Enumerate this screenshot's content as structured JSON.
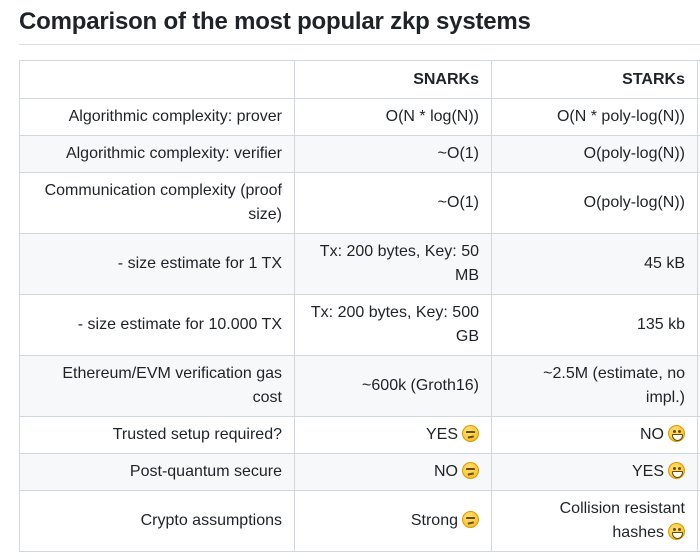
{
  "heading": "Comparison of the most popular zkp systems",
  "table": {
    "headers": [
      "",
      "SNARKs",
      "STARKs"
    ],
    "rows": [
      {
        "label": "Algorithmic complexity: prover",
        "snarks": "O(N * log(N))",
        "starks": "O(N * poly-log(N))"
      },
      {
        "label": "Algorithmic complexity: verifier",
        "snarks": "~O(1)",
        "starks": "O(poly-log(N))"
      },
      {
        "label": "Communication complexity (proof size)",
        "snarks": "~O(1)",
        "starks": "O(poly-log(N))"
      },
      {
        "label": "- size estimate for 1 TX",
        "snarks": "Tx: 200 bytes, Key: 50 MB",
        "starks": "45 kB"
      },
      {
        "label": "- size estimate for 10.000 TX",
        "snarks": "Tx: 200 bytes, Key: 500 GB",
        "starks": "135 kb"
      },
      {
        "label": "Ethereum/EVM verification gas cost",
        "snarks": "~600k (Groth16)",
        "starks": "~2.5M (estimate, no impl.)"
      },
      {
        "label": "Trusted setup required?",
        "snarks": "YES",
        "starks": "NO"
      },
      {
        "label": "Post-quantum secure",
        "snarks": "NO",
        "starks": "YES"
      },
      {
        "label": "Crypto assumptions",
        "snarks": "Strong",
        "starks": "Collision resistant hashes"
      }
    ]
  },
  "emoji": {
    "unamused": "unamused-face-icon",
    "grin": "grinning-face-icon"
  }
}
